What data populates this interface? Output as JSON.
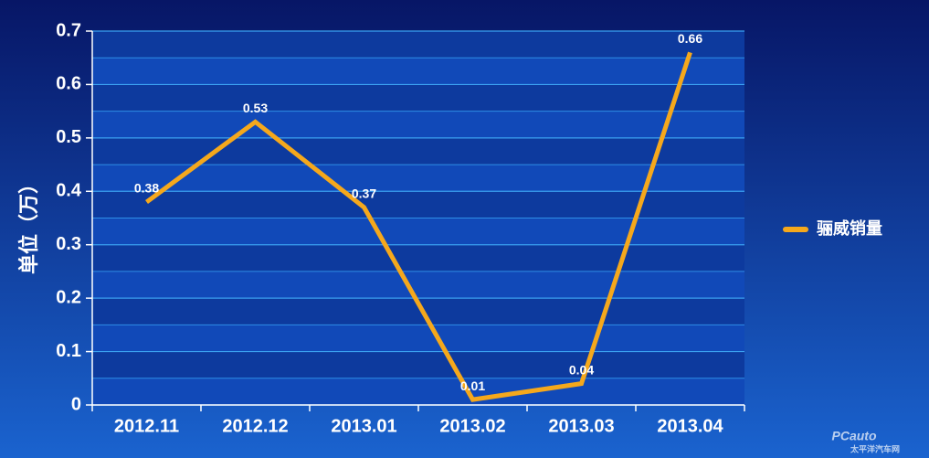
{
  "chart_data": {
    "type": "line",
    "categories": [
      "2012.11",
      "2012.12",
      "2013.01",
      "2013.02",
      "2013.03",
      "2013.04"
    ],
    "series": [
      {
        "name": "骊威销量",
        "color": "#f5a81c",
        "values": [
          0.38,
          0.53,
          0.37,
          0.01,
          0.04,
          0.66
        ]
      }
    ],
    "y_label": "单位（万）",
    "ylim": [
      0,
      0.7
    ],
    "yticks": [
      0,
      0.1,
      0.2,
      0.3,
      0.4,
      0.5,
      0.6,
      0.7
    ],
    "grid": true,
    "legend": "right"
  },
  "watermark": {
    "brand": "PCauto",
    "site": "太平洋汽车网"
  }
}
